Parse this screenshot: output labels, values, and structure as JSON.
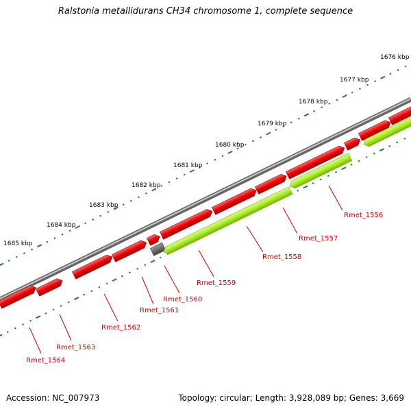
{
  "title": "Ralstonia metallidurans CH34 chromosome 1, complete sequence",
  "footer": {
    "accession": "Accession: NC_007973",
    "summary": "Topology: circular; Length: 3,928,089 bp; Genes: 3,669"
  },
  "colors": {
    "backbone": "#8f8f8f",
    "forward_gene": "#ee0000",
    "reverse_gene": "#aaee22",
    "other_feature": "#555555",
    "ticks": "#2a7a2a",
    "gene_label": "#cc0000"
  },
  "scale_labels": [
    "1676 kbp",
    "1677 kbp",
    "1678 kbp",
    "1679 kbp",
    "1680 kbp",
    "1681 kbp",
    "1682 kbp",
    "1683 kbp",
    "1684 kbp",
    "1685 kbp"
  ],
  "gene_labels": [
    "Rmet_1556",
    "Rmet_1557",
    "Rmet_1558",
    "Rmet_1559",
    "Rmet_1560",
    "Rmet_1561",
    "Rmet_1562",
    "Rmet_1563",
    "Rmet_1564"
  ]
}
